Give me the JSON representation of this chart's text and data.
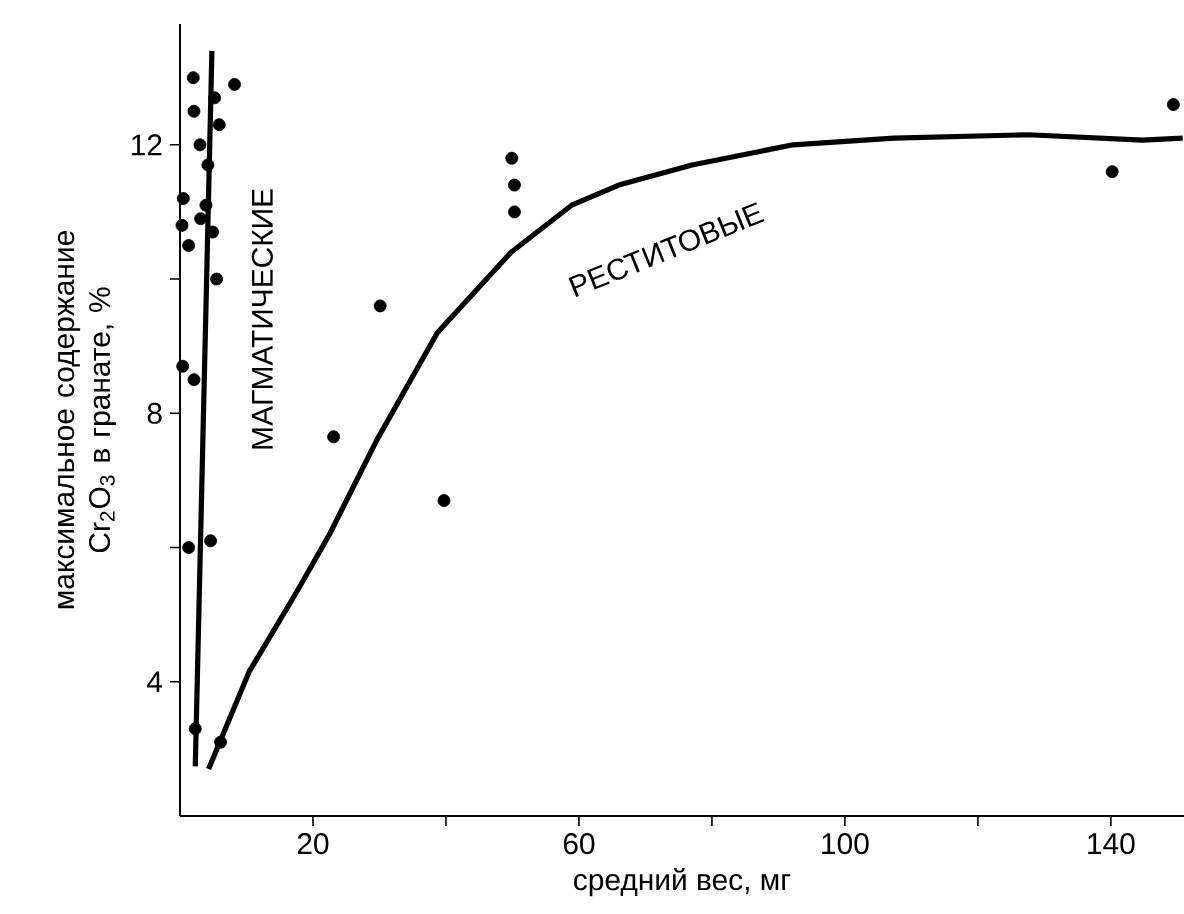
{
  "chart_data": {
    "type": "scatter",
    "xlabel": "средний вес, мг",
    "ylabel": "максимальное содержание Cr$_{2}$O$_{3}$ в гранате, %",
    "xlim": [
      0,
      151
    ],
    "ylim": [
      2,
      13.8
    ],
    "xticks": [
      20,
      {
        "value": 40,
        "label": null
      },
      60,
      {
        "value": 80,
        "label": null
      },
      100,
      {
        "value": 120,
        "label": null
      },
      140
    ],
    "yticks": [
      4,
      {
        "value": 6,
        "label": null
      },
      8,
      {
        "value": 10,
        "label": null
      },
      12
    ],
    "grid": false,
    "marker": "circle",
    "series": [
      {
        "color": "#000000",
        "x": [
          2.0,
          8.2,
          5.2,
          2.1,
          5.9,
          3.0,
          4.2,
          0.5,
          3.9,
          0.3,
          3.1,
          4.9,
          1.3,
          5.5,
          0.4,
          2.1,
          1.3,
          4.6,
          2.3,
          6.1,
          23.1,
          30.1,
          39.7,
          49.9,
          50.3,
          50.3,
          140.2,
          149.4
        ],
        "values": [
          13.0,
          12.9,
          12.7,
          12.5,
          12.3,
          12.0,
          11.7,
          11.2,
          11.1,
          10.8,
          10.9,
          10.7,
          10.5,
          10.0,
          8.7,
          8.5,
          6.0,
          6.1,
          3.3,
          3.1,
          7.65,
          9.6,
          6.7,
          11.8,
          11.4,
          11.0,
          11.6,
          12.6
        ]
      },
      {
        "type": "line",
        "color": "#000000",
        "marker": "none",
        "x": [
          2.3,
          4.8
        ],
        "values": [
          2.74,
          13.4
        ]
      },
      {
        "type": "line",
        "color": "#000000",
        "marker": "none",
        "x": [
          4.3,
          10.4,
          17.5,
          22.5,
          29.6,
          38.7,
          49.8,
          58.9,
          66,
          77,
          92.2,
          107.4,
          127.6,
          144.7,
          150.8
        ],
        "values": [
          2.7,
          4.15,
          5.33,
          6.2,
          7.6,
          9.2,
          10.4,
          11.1,
          11.4,
          11.7,
          12.0,
          12.1,
          12.15,
          12.07,
          12.1
        ]
      }
    ],
    "annotations": [
      "МАГМАТИЧЕСКИЕ",
      "РЕСТИТОВЫЕ"
    ]
  }
}
